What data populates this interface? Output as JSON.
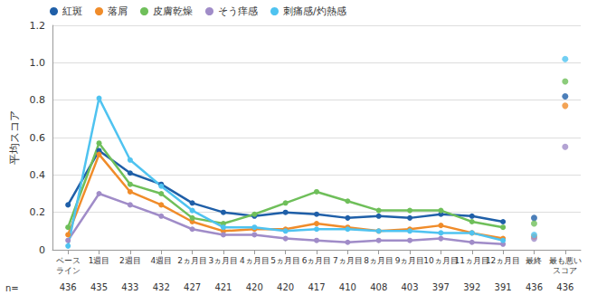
{
  "chart_data": {
    "type": "line",
    "y_label": "平均スコア",
    "categories": [
      "ベース\nライン",
      "1週目",
      "2週目",
      "4週目",
      "2ヵ月目",
      "3ヵ月目",
      "4ヵ月目",
      "5ヵ月目",
      "6ヵ月目",
      "7ヵ月目",
      "8ヵ月目",
      "9ヵ月目",
      "10ヵ月目",
      "11ヵ月目",
      "12ヵ月目",
      "最終",
      "最も悪い\nスコア"
    ],
    "series": [
      {
        "name": "紅斑",
        "color": "#1f5fa8",
        "type": "line",
        "values": [
          0.24,
          0.53,
          0.41,
          0.35,
          0.25,
          0.2,
          0.18,
          0.2,
          0.19,
          0.17,
          0.18,
          0.17,
          0.19,
          0.18,
          0.15,
          null,
          null
        ]
      },
      {
        "name": "落屑",
        "color": "#f08c2a",
        "type": "line",
        "values": [
          0.08,
          0.51,
          0.31,
          0.24,
          0.15,
          0.1,
          0.11,
          0.11,
          0.14,
          0.12,
          0.1,
          0.11,
          0.13,
          0.09,
          0.06,
          null,
          null
        ]
      },
      {
        "name": "皮膚乾燥",
        "color": "#6fbf5a",
        "type": "line",
        "values": [
          0.12,
          0.57,
          0.35,
          0.3,
          0.17,
          0.14,
          0.19,
          0.25,
          0.31,
          0.26,
          0.21,
          0.21,
          0.21,
          0.15,
          0.12,
          null,
          null
        ]
      },
      {
        "name": "そう痒感",
        "color": "#a08cc8",
        "type": "line",
        "values": [
          0.05,
          0.3,
          0.24,
          0.18,
          0.11,
          0.08,
          0.08,
          0.06,
          0.05,
          0.04,
          0.05,
          0.05,
          0.06,
          0.04,
          0.03,
          null,
          null
        ]
      },
      {
        "name": "刺痛感/灼熱感",
        "color": "#4fc3f0",
        "type": "line",
        "values": [
          0.02,
          0.81,
          0.48,
          0.34,
          0.21,
          0.12,
          0.12,
          0.1,
          0.11,
          0.11,
          0.1,
          0.1,
          0.09,
          0.09,
          0.05,
          null,
          null
        ]
      },
      {
        "name": "紅斑",
        "color": "#1f5fa8",
        "type": "scatter",
        "values": [
          null,
          null,
          null,
          null,
          null,
          null,
          null,
          null,
          null,
          null,
          null,
          null,
          null,
          null,
          null,
          0.17,
          0.82
        ]
      },
      {
        "name": "落屑",
        "color": "#f08c2a",
        "type": "scatter",
        "values": [
          null,
          null,
          null,
          null,
          null,
          null,
          null,
          null,
          null,
          null,
          null,
          null,
          null,
          null,
          null,
          0.07,
          0.77
        ]
      },
      {
        "name": "皮膚乾燥",
        "color": "#6fbf5a",
        "type": "scatter",
        "values": [
          null,
          null,
          null,
          null,
          null,
          null,
          null,
          null,
          null,
          null,
          null,
          null,
          null,
          null,
          null,
          0.14,
          0.9
        ]
      },
      {
        "name": "そう痒感",
        "color": "#a08cc8",
        "type": "scatter",
        "values": [
          null,
          null,
          null,
          null,
          null,
          null,
          null,
          null,
          null,
          null,
          null,
          null,
          null,
          null,
          null,
          0.06,
          0.55
        ]
      },
      {
        "name": "刺痛感/灼熱感",
        "color": "#4fc3f0",
        "type": "scatter",
        "values": [
          null,
          null,
          null,
          null,
          null,
          null,
          null,
          null,
          null,
          null,
          null,
          null,
          null,
          null,
          null,
          0.08,
          1.02
        ]
      }
    ],
    "ylim": [
      0,
      1.2
    ],
    "yticks": [
      0,
      0.2,
      0.4,
      0.6,
      0.8,
      {
        "value": 1,
        "label": "1.0"
      },
      1.2
    ],
    "grid": true,
    "legend": "top",
    "marker": "circle",
    "n_label": "n=",
    "n": [
      436,
      435,
      433,
      432,
      427,
      421,
      420,
      420,
      417,
      410,
      408,
      403,
      397,
      392,
      391,
      436,
      436
    ]
  }
}
